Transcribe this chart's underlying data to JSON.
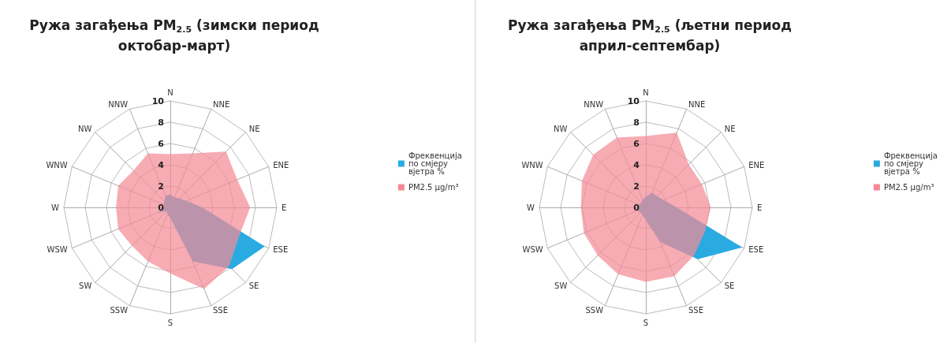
{
  "chart_data": [
    {
      "type": "radar",
      "title": "Ружа загађења PM$_{2.5}$ (зимски период октобар-март)",
      "categories": [
        "N",
        "NNE",
        "NE",
        "ENE",
        "E",
        "ESE",
        "SE",
        "SSE",
        "S",
        "SSW",
        "SW",
        "WSW",
        "W",
        "WNW",
        "NW",
        "NNW"
      ],
      "ylim": [
        0,
        10
      ],
      "yticks": [
        0,
        2,
        4,
        6,
        8,
        10
      ],
      "grid": true,
      "legend": "right",
      "series": [
        {
          "name": "Фреквенција по смјеру вјетра %",
          "color": "#29abe2",
          "values": [
            1.2,
            1.0,
            1.2,
            1.6,
            3.0,
            9.6,
            8.2,
            5.5,
            1.0,
            0.7,
            0.5,
            1.3,
            0.6,
            0.7,
            0.8,
            1.2
          ]
        },
        {
          "name": "PM2.5 µg/m³",
          "color": "#f48a95",
          "values": [
            5.0,
            5.5,
            7.4,
            6.8,
            7.5,
            7.0,
            7.8,
            8.3,
            6.2,
            5.5,
            5.1,
            5.3,
            5.1,
            5.3,
            4.9,
            5.5
          ]
        }
      ]
    },
    {
      "type": "radar",
      "title": "Ружа загађења PM$_{2.5}$ (љетни период април-септембар)",
      "categories": [
        "N",
        "NNE",
        "NE",
        "ENE",
        "E",
        "ESE",
        "SE",
        "SSE",
        "S",
        "SSW",
        "SW",
        "WSW",
        "W",
        "WNW",
        "NW",
        "NNW"
      ],
      "ylim": [
        0,
        10
      ],
      "yticks": [
        0,
        2,
        4,
        6,
        8,
        10
      ],
      "grid": true,
      "legend": "right",
      "series": [
        {
          "name": "Фреквенција по смјеру вјетра %",
          "color": "#29abe2",
          "values": [
            1.0,
            1.5,
            1.5,
            1.8,
            2.9,
            9.8,
            6.9,
            3.5,
            1.2,
            0.8,
            0.7,
            0.8,
            0.8,
            0.7,
            0.6,
            0.8
          ]
        },
        {
          "name": "PM2.5 µg/m³",
          "color": "#f48a95",
          "values": [
            6.7,
            7.6,
            5.7,
            5.7,
            6.1,
            6.0,
            6.4,
            7.0,
            7.0,
            6.8,
            6.4,
            6.3,
            6.1,
            6.5,
            7.0,
            7.1
          ]
        }
      ]
    }
  ]
}
